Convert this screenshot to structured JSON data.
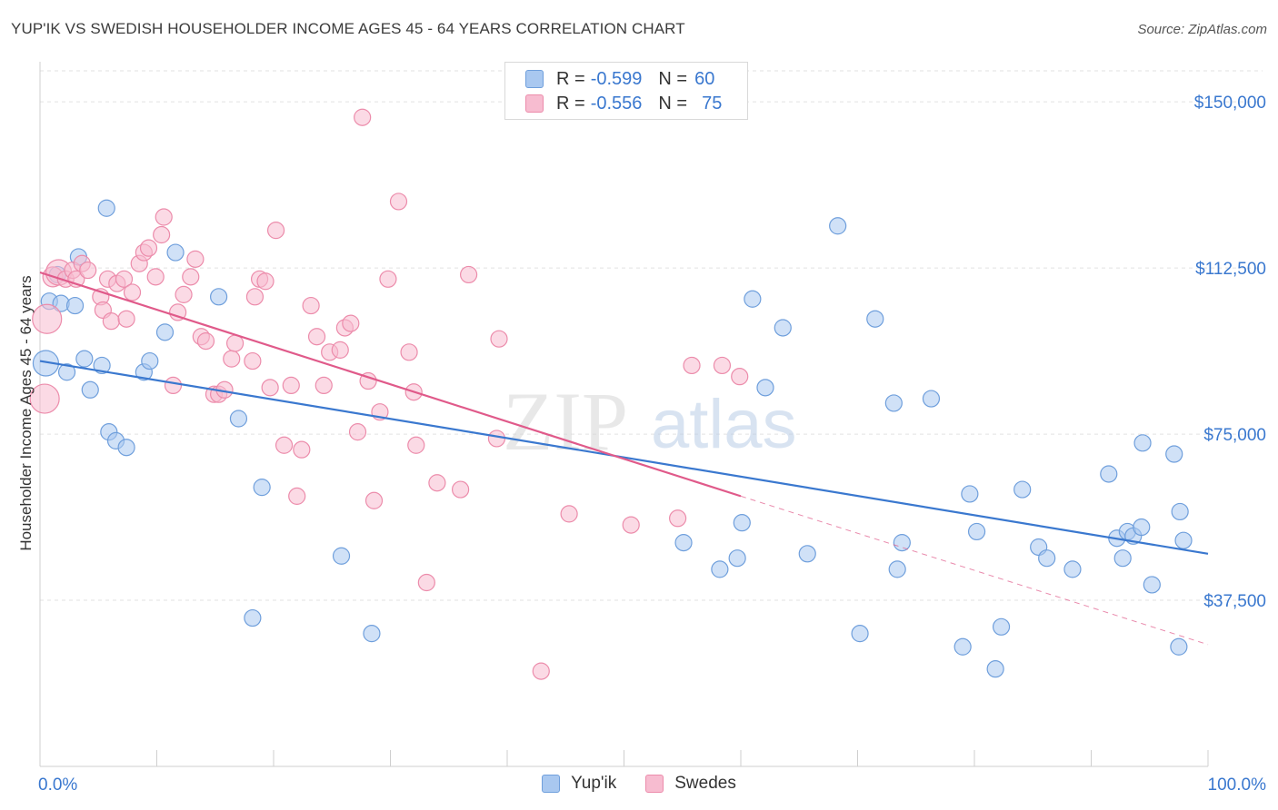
{
  "title": "YUP'IK VS SWEDISH HOUSEHOLDER INCOME AGES 45 - 64 YEARS CORRELATION CHART",
  "source": "Source: ZipAtlas.com",
  "watermark": {
    "zip": "ZIP",
    "atlas": "atlas"
  },
  "legend": {
    "rows": [
      {
        "r_label": "R =",
        "r_value": "-0.599",
        "n_label": "N =",
        "n_value": "60",
        "color": "#a9c8f0",
        "stroke": "#6f9fdc"
      },
      {
        "r_label": "R =",
        "r_value": "-0.556",
        "n_label": "N =",
        "n_value": "75",
        "color": "#f7bcd0",
        "stroke": "#ec8cab"
      }
    ]
  },
  "bottom_legend": [
    "Yup'ik",
    "Swedes"
  ],
  "chart_data": {
    "type": "scatter",
    "xlabel": "",
    "ylabel": "Householder Income Ages 45 - 64 years",
    "xlim": [
      0,
      100
    ],
    "ylim": [
      0,
      157000
    ],
    "x_tick_labels": [
      "0.0%",
      "100.0%"
    ],
    "y_ticks": [
      37500,
      75000,
      112500,
      150000
    ],
    "y_tick_labels": [
      "$37,500",
      "$75,000",
      "$112,500",
      "$150,000"
    ],
    "grid": true,
    "series": [
      {
        "name": "Yup'ik",
        "color": "#a9c8f0",
        "stroke": "#6f9fdc",
        "line_color": "#3a78cf",
        "trend": {
          "x0": 0,
          "y0": 91500,
          "x1": 100,
          "y1": 48000
        },
        "points": [
          [
            0.5,
            91000,
            14
          ],
          [
            0.8,
            105000,
            9
          ],
          [
            1.5,
            111000,
            9
          ],
          [
            1.8,
            104500,
            9
          ],
          [
            2.3,
            89000,
            9
          ],
          [
            3.0,
            104000,
            9
          ],
          [
            3.3,
            115000,
            9
          ],
          [
            3.8,
            92000,
            9
          ],
          [
            4.3,
            85000,
            9
          ],
          [
            5.3,
            90500,
            9
          ],
          [
            5.7,
            126000,
            9
          ],
          [
            5.9,
            75500,
            9
          ],
          [
            6.5,
            73500,
            9
          ],
          [
            7.4,
            72000,
            9
          ],
          [
            8.9,
            89000,
            9
          ],
          [
            9.4,
            91500,
            9
          ],
          [
            10.7,
            98000,
            9
          ],
          [
            11.6,
            116000,
            9
          ],
          [
            15.3,
            106000,
            9
          ],
          [
            17.0,
            78500,
            9
          ],
          [
            18.2,
            33500,
            9
          ],
          [
            19.0,
            63000,
            9
          ],
          [
            25.8,
            47500,
            9
          ],
          [
            28.4,
            30000,
            9
          ],
          [
            55.1,
            50500,
            9
          ],
          [
            58.2,
            44500,
            9
          ],
          [
            59.7,
            47000,
            9
          ],
          [
            60.1,
            55000,
            9
          ],
          [
            61.0,
            105500,
            9
          ],
          [
            62.1,
            85500,
            9
          ],
          [
            63.6,
            99000,
            9
          ],
          [
            65.7,
            48000,
            9
          ],
          [
            68.3,
            122000,
            9
          ],
          [
            70.2,
            30000,
            9
          ],
          [
            71.5,
            101000,
            9
          ],
          [
            73.1,
            82000,
            9
          ],
          [
            73.4,
            44500,
            9
          ],
          [
            73.8,
            50500,
            9
          ],
          [
            76.3,
            83000,
            9
          ],
          [
            79.0,
            27000,
            9
          ],
          [
            79.6,
            61500,
            9
          ],
          [
            80.2,
            53000,
            9
          ],
          [
            81.8,
            22000,
            9
          ],
          [
            82.3,
            31500,
            9
          ],
          [
            84.1,
            62500,
            9
          ],
          [
            85.5,
            49500,
            9
          ],
          [
            86.2,
            47000,
            9
          ],
          [
            88.4,
            44500,
            9
          ],
          [
            91.5,
            66000,
            9
          ],
          [
            92.2,
            51500,
            9
          ],
          [
            92.7,
            47000,
            9
          ],
          [
            93.1,
            53000,
            9
          ],
          [
            93.6,
            52000,
            9
          ],
          [
            94.3,
            54000,
            9
          ],
          [
            94.4,
            73000,
            9
          ],
          [
            95.2,
            41000,
            9
          ],
          [
            97.1,
            70500,
            9
          ],
          [
            97.5,
            27000,
            9
          ],
          [
            97.6,
            57500,
            9
          ],
          [
            97.9,
            51000,
            9
          ]
        ]
      },
      {
        "name": "Swedes",
        "color": "#f7bcd0",
        "stroke": "#ec8cab",
        "line_color": "#e05a8a",
        "trend": {
          "x0": 0,
          "y0": 111500,
          "x1": 60,
          "y1": 61000
        },
        "trend_dashed": {
          "x0": 60,
          "y0": 61000,
          "x1": 100,
          "y1": 27500
        },
        "points": [
          [
            0.4,
            83000,
            16
          ],
          [
            0.6,
            101000,
            16
          ],
          [
            1.1,
            110500,
            11
          ],
          [
            1.6,
            111500,
            14
          ],
          [
            2.2,
            110000,
            9
          ],
          [
            2.8,
            112000,
            9
          ],
          [
            3.1,
            110000,
            9
          ],
          [
            3.6,
            113500,
            9
          ],
          [
            4.1,
            112000,
            9
          ],
          [
            5.2,
            106000,
            9
          ],
          [
            5.4,
            103000,
            9
          ],
          [
            5.8,
            110000,
            9
          ],
          [
            6.1,
            100500,
            9
          ],
          [
            6.6,
            109000,
            9
          ],
          [
            7.2,
            110000,
            9
          ],
          [
            7.4,
            101000,
            9
          ],
          [
            7.9,
            107000,
            9
          ],
          [
            8.5,
            113500,
            9
          ],
          [
            8.9,
            116000,
            9
          ],
          [
            9.3,
            117000,
            9
          ],
          [
            9.9,
            110500,
            9
          ],
          [
            10.4,
            120000,
            9
          ],
          [
            10.6,
            124000,
            9
          ],
          [
            11.4,
            86000,
            9
          ],
          [
            11.8,
            102500,
            9
          ],
          [
            12.3,
            106500,
            9
          ],
          [
            12.9,
            110500,
            9
          ],
          [
            13.3,
            114500,
            9
          ],
          [
            13.8,
            97000,
            9
          ],
          [
            14.2,
            96000,
            9
          ],
          [
            14.9,
            84000,
            9
          ],
          [
            15.3,
            84000,
            9
          ],
          [
            15.8,
            85000,
            9
          ],
          [
            16.4,
            92000,
            9
          ],
          [
            16.7,
            95500,
            9
          ],
          [
            18.2,
            91500,
            9
          ],
          [
            18.4,
            106000,
            9
          ],
          [
            18.8,
            110000,
            9
          ],
          [
            19.3,
            109500,
            9
          ],
          [
            19.7,
            85500,
            9
          ],
          [
            20.2,
            121000,
            9
          ],
          [
            20.9,
            72500,
            9
          ],
          [
            21.5,
            86000,
            9
          ],
          [
            22.0,
            61000,
            9
          ],
          [
            22.4,
            71500,
            9
          ],
          [
            23.2,
            104000,
            9
          ],
          [
            23.7,
            97000,
            9
          ],
          [
            24.3,
            86000,
            9
          ],
          [
            24.8,
            93500,
            9
          ],
          [
            25.7,
            94000,
            9
          ],
          [
            26.1,
            99000,
            9
          ],
          [
            26.6,
            100000,
            9
          ],
          [
            27.2,
            75500,
            9
          ],
          [
            27.6,
            146500,
            9
          ],
          [
            28.1,
            87000,
            9
          ],
          [
            28.6,
            60000,
            9
          ],
          [
            29.1,
            80000,
            9
          ],
          [
            29.8,
            110000,
            9
          ],
          [
            30.7,
            127500,
            9
          ],
          [
            31.6,
            93500,
            9
          ],
          [
            32.0,
            84500,
            9
          ],
          [
            32.2,
            72500,
            9
          ],
          [
            33.1,
            41500,
            9
          ],
          [
            34.0,
            64000,
            9
          ],
          [
            36.0,
            62500,
            9
          ],
          [
            36.7,
            111000,
            9
          ],
          [
            39.1,
            74000,
            9
          ],
          [
            39.3,
            96500,
            9
          ],
          [
            42.9,
            21500,
            9
          ],
          [
            45.3,
            57000,
            9
          ],
          [
            50.6,
            54500,
            9
          ],
          [
            54.6,
            56000,
            9
          ],
          [
            55.8,
            90500,
            9
          ],
          [
            58.4,
            90500,
            9
          ],
          [
            59.9,
            88000,
            9
          ]
        ]
      }
    ]
  }
}
